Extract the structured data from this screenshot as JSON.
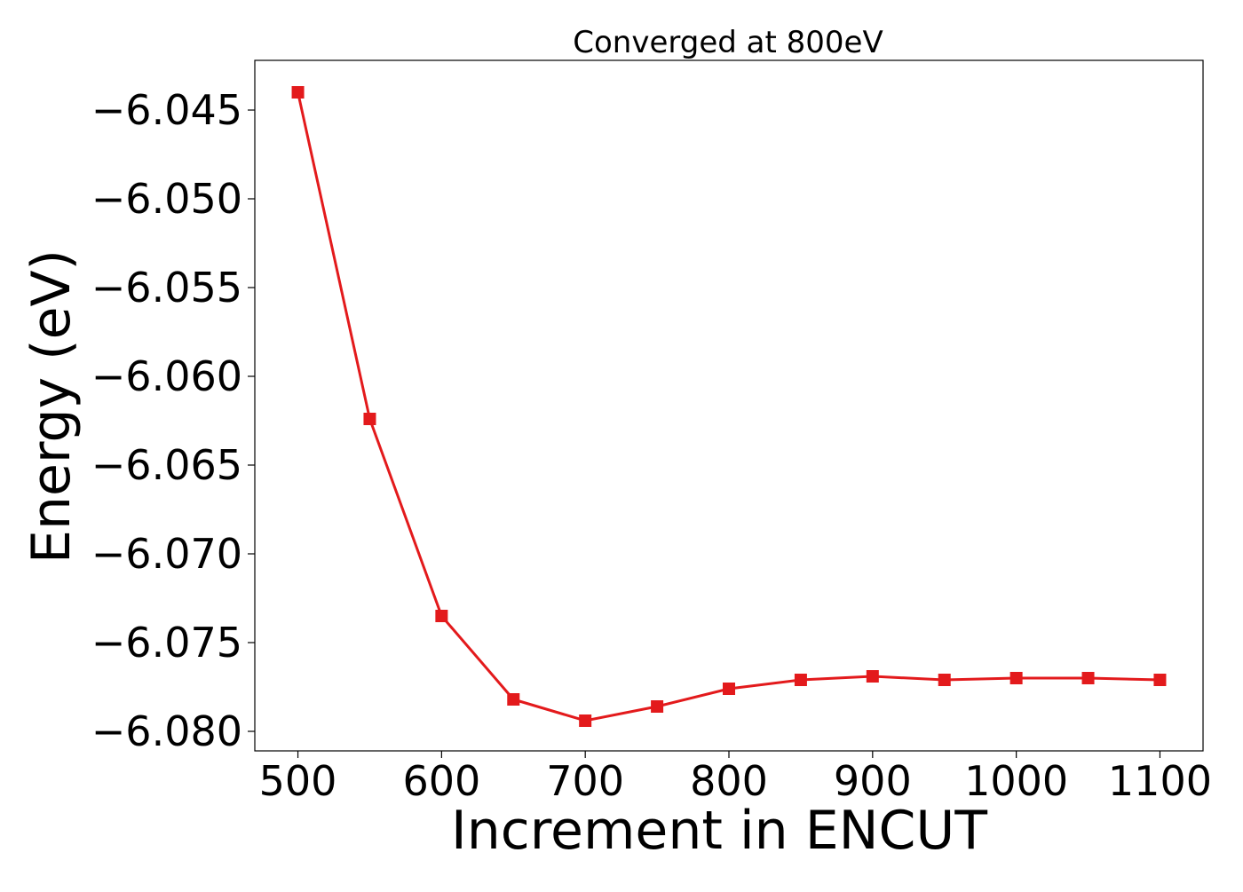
{
  "chart_data": {
    "type": "line",
    "title": "Converged at 800eV",
    "xlabel": "Increment in ENCUT",
    "ylabel": "Energy (eV)",
    "xlim": [
      470,
      1130
    ],
    "ylim": [
      -6.0811,
      -6.0422
    ],
    "xticks": [
      500,
      600,
      700,
      800,
      900,
      1000,
      1100
    ],
    "xtick_labels": [
      "500",
      "600",
      "700",
      "800",
      "900",
      "1000",
      "1100"
    ],
    "yticks": [
      -6.045,
      -6.05,
      -6.055,
      -6.06,
      -6.065,
      -6.07,
      -6.075,
      -6.08
    ],
    "ytick_labels": [
      "−6.045",
      "−6.050",
      "−6.055",
      "−6.060",
      "−6.065",
      "−6.070",
      "−6.075",
      "−6.080"
    ],
    "grid": false,
    "legend": "none",
    "series": [
      {
        "color": "#e31a1c",
        "marker": "square",
        "x": [
          500,
          550,
          600,
          650,
          700,
          750,
          800,
          850,
          900,
          950,
          1000,
          1050,
          1100
        ],
        "y": [
          -6.044,
          -6.0624,
          -6.0735,
          -6.0782,
          -6.0794,
          -6.0786,
          -6.0776,
          -6.0771,
          -6.0769,
          -6.0771,
          -6.077,
          -6.077,
          -6.0771
        ]
      }
    ]
  }
}
